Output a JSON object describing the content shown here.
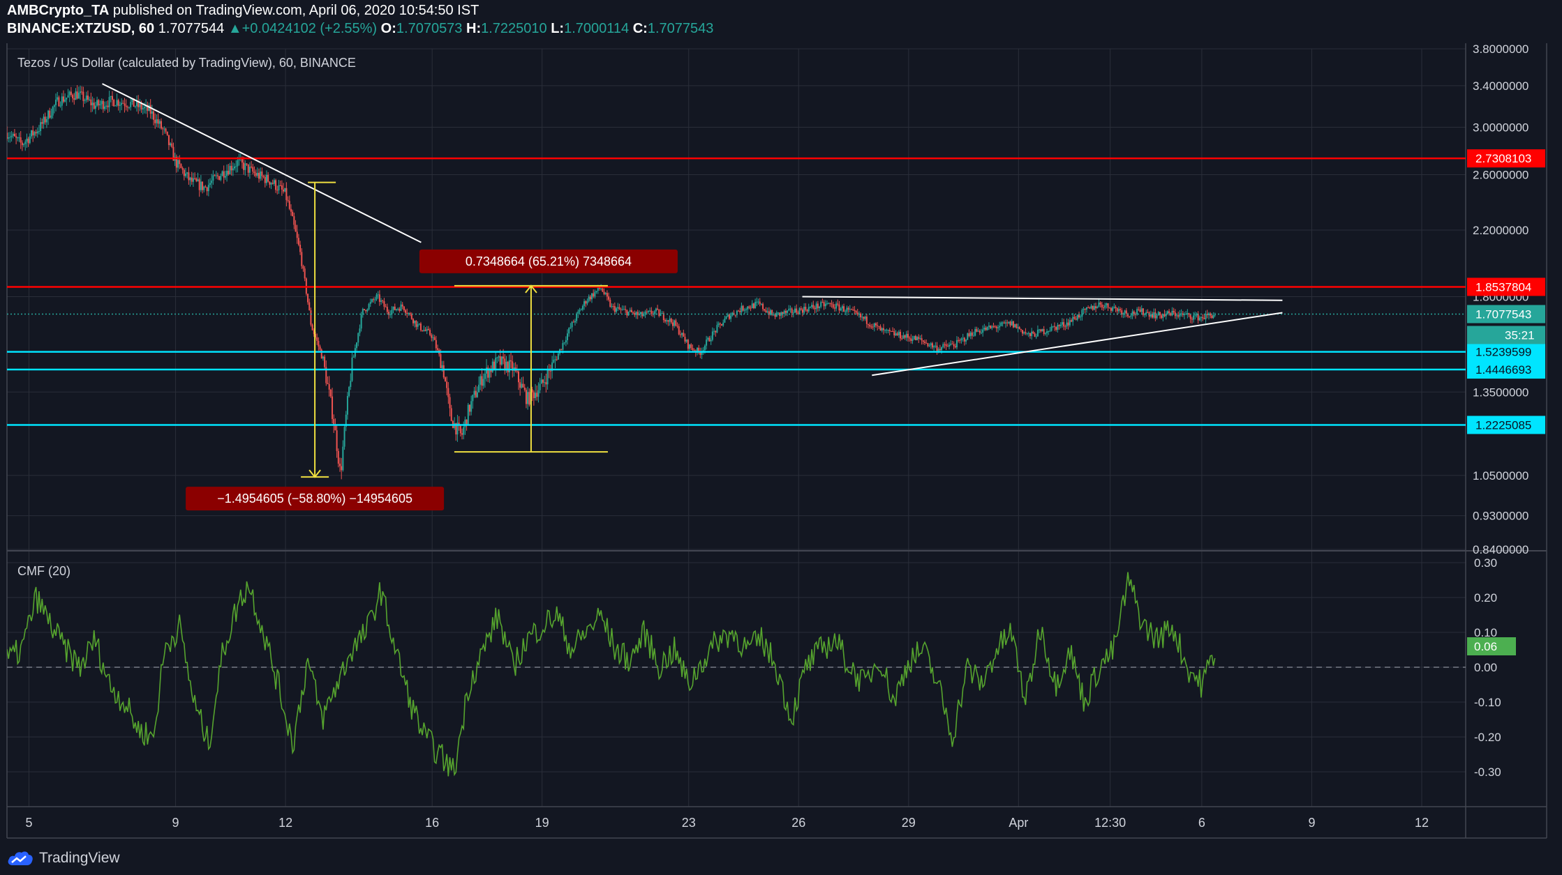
{
  "header": {
    "publisher": "AMBCrypto_TA",
    "published_text": "published on TradingView.com, April 06, 2020 10:54:50 IST",
    "symbol": "BINANCE:XTZUSD, 60",
    "last": "1.7077544",
    "change": "+0.0424102 (+2.55%)",
    "o_label": "O:",
    "o_value": "1.7070573",
    "h_label": "H:",
    "h_value": "1.7225010",
    "l_label": "L:",
    "l_value": "1.7000114",
    "c_label": "C:",
    "c_value": "1.7077543"
  },
  "footer": {
    "brand": "TradingView"
  },
  "colors": {
    "background": "#131722",
    "grid": "#2a2e39",
    "up": "#26a69a",
    "down": "#ef5350",
    "resistance": "#ff0000",
    "support": "#00e5ff",
    "trendline": "#ffffff",
    "measure": "#f0e040",
    "label_bg": "#8b0000",
    "cmf": "#56a42e",
    "price_label": "#26a69a"
  },
  "chart_data": [
    {
      "type": "candlestick",
      "title": "Tezos / US Dollar (calculated by TradingView), 60, BINANCE",
      "scale": "log",
      "ylim": [
        0.84,
        3.8
      ],
      "y_ticks": [
        "3.8000000",
        "3.4000000",
        "3.0000000",
        "2.6000000",
        "2.2000000",
        "1.8000000",
        "1.3500000",
        "1.0500000",
        "0.9300000",
        "0.8400000"
      ],
      "x_ticks": [
        "5",
        "9",
        "12",
        "16",
        "19",
        "23",
        "26",
        "29",
        "Apr",
        "12:30",
        "6",
        "9",
        "12"
      ],
      "x_tick_days": [
        5,
        9,
        12,
        16,
        19,
        23,
        26,
        29,
        32,
        34.5,
        37,
        40,
        43
      ],
      "xlim": [
        4.4,
        44.2
      ],
      "approx_close_path": [
        [
          4.4,
          2.95
        ],
        [
          4.8,
          2.85
        ],
        [
          5.3,
          3.0
        ],
        [
          5.8,
          3.25
        ],
        [
          6.3,
          3.32
        ],
        [
          6.8,
          3.2
        ],
        [
          7.3,
          3.25
        ],
        [
          7.8,
          3.22
        ],
        [
          8.3,
          3.15
        ],
        [
          8.7,
          2.95
        ],
        [
          9.0,
          2.7
        ],
        [
          9.4,
          2.55
        ],
        [
          9.8,
          2.5
        ],
        [
          10.3,
          2.62
        ],
        [
          10.7,
          2.7
        ],
        [
          11.2,
          2.6
        ],
        [
          11.6,
          2.55
        ],
        [
          12.0,
          2.45
        ],
        [
          12.4,
          2.05
        ],
        [
          12.7,
          1.65
        ],
        [
          13.0,
          1.5
        ],
        [
          13.3,
          1.25
        ],
        [
          13.5,
          1.05
        ],
        [
          13.8,
          1.45
        ],
        [
          14.1,
          1.72
        ],
        [
          14.5,
          1.8
        ],
        [
          14.8,
          1.72
        ],
        [
          15.2,
          1.75
        ],
        [
          15.6,
          1.65
        ],
        [
          16.0,
          1.6
        ],
        [
          16.3,
          1.45
        ],
        [
          16.5,
          1.25
        ],
        [
          16.8,
          1.18
        ],
        [
          17.0,
          1.28
        ],
        [
          17.4,
          1.42
        ],
        [
          17.8,
          1.48
        ],
        [
          18.2,
          1.45
        ],
        [
          18.6,
          1.32
        ],
        [
          19.0,
          1.38
        ],
        [
          19.4,
          1.5
        ],
        [
          19.8,
          1.65
        ],
        [
          20.2,
          1.78
        ],
        [
          20.6,
          1.85
        ],
        [
          20.9,
          1.74
        ],
        [
          21.3,
          1.72
        ],
        [
          21.7,
          1.7
        ],
        [
          22.1,
          1.72
        ],
        [
          22.6,
          1.66
        ],
        [
          23.0,
          1.55
        ],
        [
          23.3,
          1.52
        ],
        [
          23.7,
          1.62
        ],
        [
          24.1,
          1.7
        ],
        [
          24.5,
          1.74
        ],
        [
          24.9,
          1.76
        ],
        [
          25.3,
          1.7
        ],
        [
          25.8,
          1.72
        ],
        [
          26.3,
          1.74
        ],
        [
          26.8,
          1.76
        ],
        [
          27.3,
          1.73
        ],
        [
          27.8,
          1.68
        ],
        [
          28.3,
          1.62
        ],
        [
          28.8,
          1.6
        ],
        [
          29.3,
          1.58
        ],
        [
          29.8,
          1.54
        ],
        [
          30.3,
          1.56
        ],
        [
          30.8,
          1.62
        ],
        [
          31.3,
          1.64
        ],
        [
          31.8,
          1.66
        ],
        [
          32.3,
          1.6
        ],
        [
          32.8,
          1.63
        ],
        [
          33.3,
          1.66
        ],
        [
          33.8,
          1.72
        ],
        [
          34.2,
          1.76
        ],
        [
          34.6,
          1.74
        ],
        [
          35.0,
          1.71
        ],
        [
          35.4,
          1.72
        ],
        [
          35.8,
          1.7
        ],
        [
          36.2,
          1.71
        ],
        [
          36.6,
          1.7
        ],
        [
          37.0,
          1.69
        ],
        [
          37.4,
          1.71
        ]
      ],
      "horizontal_levels": [
        {
          "value": 2.7308103,
          "label": "2.7308103",
          "kind": "resistance"
        },
        {
          "value": 1.8537804,
          "label": "1.8537804",
          "kind": "resistance"
        },
        {
          "value": 1.5239599,
          "label": "1.5239599",
          "kind": "support"
        },
        {
          "value": 1.4446693,
          "label": "1.4446693",
          "kind": "support"
        },
        {
          "value": 1.2225085,
          "label": "1.2225085",
          "kind": "support"
        }
      ],
      "current_price": {
        "value": 1.7077543,
        "label": "1.7077543",
        "countdown": "35:21"
      },
      "trendlines": [
        {
          "points": [
            [
              7.0,
              3.42
            ],
            [
              15.7,
              2.12
            ]
          ]
        },
        {
          "points": [
            [
              26.1,
              1.8
            ],
            [
              39.2,
              1.78
            ]
          ]
        },
        {
          "points": [
            [
              28.0,
              1.42
            ],
            [
              39.2,
              1.715
            ]
          ]
        }
      ],
      "annotations": [
        {
          "text": "−1.4954605 (−58.80%) −14954605",
          "from": 2.54,
          "to": 1.045,
          "day": 12.8
        },
        {
          "text": "0.7348664 (65.21%) 7348664",
          "from": 1.127,
          "to": 1.86,
          "day": 18.7
        }
      ]
    },
    {
      "type": "line",
      "title": "CMF (20)",
      "ylim": [
        -0.4,
        0.33
      ],
      "y_ticks": [
        "0.30",
        "0.20",
        "0.10",
        "0.00",
        "-0.10",
        "-0.20",
        "-0.30"
      ],
      "current": {
        "value": 0.06,
        "label": "0.06"
      },
      "approx_series": [
        [
          4.4,
          0.02
        ],
        [
          4.8,
          0.05
        ],
        [
          5.2,
          0.2
        ],
        [
          5.6,
          0.12
        ],
        [
          6.0,
          0.05
        ],
        [
          6.4,
          0.0
        ],
        [
          6.8,
          0.08
        ],
        [
          7.2,
          -0.05
        ],
        [
          7.6,
          -0.1
        ],
        [
          8.0,
          -0.18
        ],
        [
          8.4,
          -0.2
        ],
        [
          8.7,
          0.05
        ],
        [
          9.1,
          0.12
        ],
        [
          9.5,
          -0.1
        ],
        [
          9.9,
          -0.22
        ],
        [
          10.3,
          0.05
        ],
        [
          10.7,
          0.18
        ],
        [
          11.0,
          0.24
        ],
        [
          11.4,
          0.1
        ],
        [
          11.8,
          -0.05
        ],
        [
          12.2,
          -0.22
        ],
        [
          12.6,
          0.02
        ],
        [
          13.0,
          -0.15
        ],
        [
          13.4,
          -0.05
        ],
        [
          13.8,
          0.05
        ],
        [
          14.2,
          0.1
        ],
        [
          14.6,
          0.22
        ],
        [
          15.0,
          0.05
        ],
        [
          15.4,
          -0.1
        ],
        [
          15.8,
          -0.2
        ],
        [
          16.2,
          -0.25
        ],
        [
          16.6,
          -0.3
        ],
        [
          17.0,
          -0.05
        ],
        [
          17.4,
          0.05
        ],
        [
          17.8,
          0.15
        ],
        [
          18.2,
          0.0
        ],
        [
          18.6,
          0.08
        ],
        [
          19.0,
          0.12
        ],
        [
          19.4,
          0.15
        ],
        [
          19.8,
          0.05
        ],
        [
          20.2,
          0.1
        ],
        [
          20.6,
          0.15
        ],
        [
          21.0,
          0.05
        ],
        [
          21.4,
          0.02
        ],
        [
          21.8,
          0.1
        ],
        [
          22.2,
          0.0
        ],
        [
          22.6,
          0.05
        ],
        [
          23.0,
          -0.05
        ],
        [
          23.4,
          0.02
        ],
        [
          23.8,
          0.08
        ],
        [
          24.2,
          0.1
        ],
        [
          24.6,
          0.05
        ],
        [
          25.0,
          0.08
        ],
        [
          25.4,
          0.0
        ],
        [
          25.8,
          -0.15
        ],
        [
          26.2,
          0.0
        ],
        [
          26.6,
          0.05
        ],
        [
          27.0,
          0.08
        ],
        [
          27.4,
          0.0
        ],
        [
          27.8,
          -0.05
        ],
        [
          28.2,
          0.03
        ],
        [
          28.6,
          -0.1
        ],
        [
          29.0,
          0.02
        ],
        [
          29.4,
          0.05
        ],
        [
          29.8,
          -0.05
        ],
        [
          30.2,
          -0.2
        ],
        [
          30.6,
          0.0
        ],
        [
          31.0,
          -0.05
        ],
        [
          31.4,
          0.05
        ],
        [
          31.8,
          0.1
        ],
        [
          32.2,
          -0.1
        ],
        [
          32.6,
          0.12
        ],
        [
          33.0,
          -0.05
        ],
        [
          33.4,
          0.05
        ],
        [
          33.8,
          -0.1
        ],
        [
          34.2,
          0.0
        ],
        [
          34.6,
          0.05
        ],
        [
          35.0,
          0.25
        ],
        [
          35.4,
          0.12
        ],
        [
          35.8,
          0.08
        ],
        [
          36.2,
          0.12
        ],
        [
          36.6,
          0.0
        ],
        [
          37.0,
          -0.05
        ],
        [
          37.4,
          0.06
        ]
      ]
    }
  ]
}
